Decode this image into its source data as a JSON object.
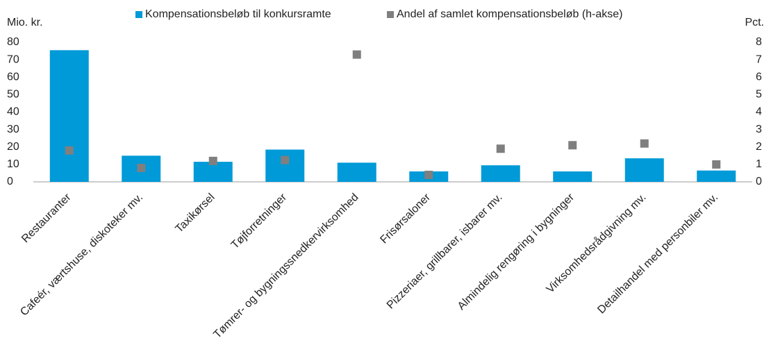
{
  "chart_data": {
    "type": "bar",
    "y_label": "Mio. kr.",
    "y2_label": "Pct.",
    "categories": [
      "Restauranter",
      "Cafeér, værtshuse, diskoteker mv.",
      "Taxikørsel",
      "Tøjforretninger",
      "Tømrer- og bygningssnedkervirksomhed",
      "Frisørsaloner",
      "Pizzeriaer, grillbarer, isbarer mv.",
      "Almindelig rengøring i bygninger",
      "Virksomhedsrådgivning mv.",
      "Detailhandel med personbiler mv."
    ],
    "series": [
      {
        "name": "Kompensationsbeløb til konkursramte",
        "type": "bar",
        "color": "#009ad8",
        "values": [
          75.5,
          15,
          11.5,
          18.5,
          11,
          6,
          9.5,
          6,
          13.5,
          6.5
        ]
      },
      {
        "name": "Andel af samlet kompensationsbeløb (h-akse)",
        "type": "scatter",
        "axis": "y2",
        "color": "#7f7f7f",
        "values": [
          1.8,
          0.8,
          1.2,
          1.25,
          7.3,
          0.4,
          1.9,
          2.1,
          2.2,
          1.0
        ]
      }
    ],
    "ylim": [
      0,
      80
    ],
    "yticks": [
      0,
      10,
      20,
      30,
      40,
      50,
      60,
      70,
      80
    ],
    "y2lim": [
      0,
      8
    ],
    "y2ticks": [
      0,
      1,
      2,
      3,
      4,
      5,
      6,
      7,
      8
    ],
    "grid": false,
    "legend": "top"
  }
}
